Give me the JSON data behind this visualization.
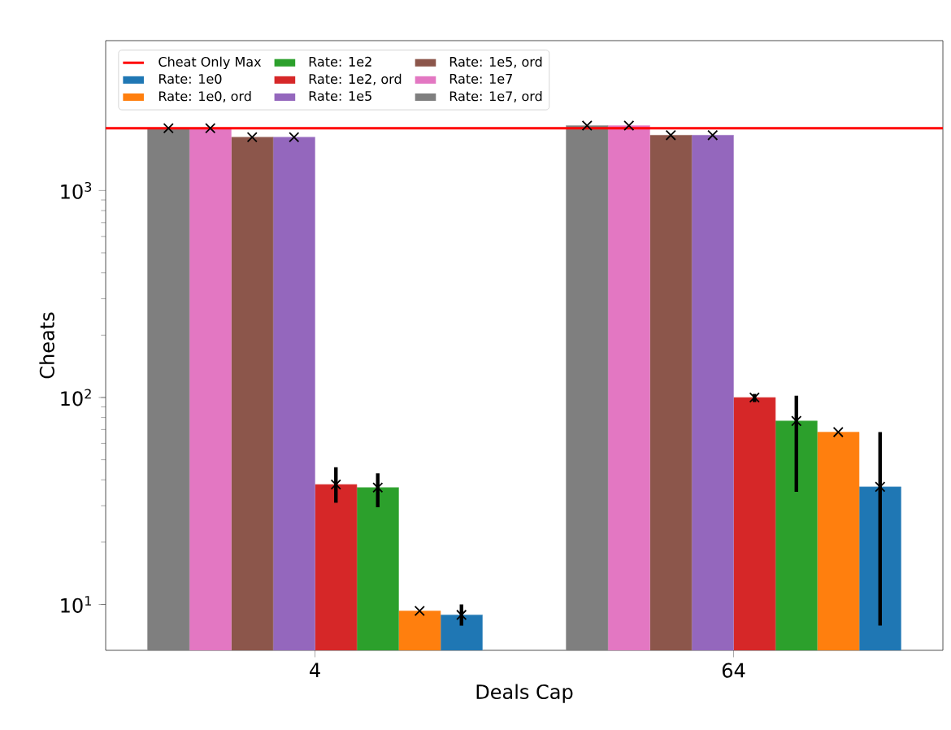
{
  "chart_data": {
    "type": "bar",
    "xlabel": "Deals Cap",
    "ylabel": "Cheats",
    "categories": [
      "4",
      "64"
    ],
    "series": [
      {
        "name": "Rate: 1e0",
        "color": "#1f77b4",
        "values": [
          8.9,
          37
        ],
        "errors": [
          [
            7.9,
            10
          ],
          [
            7.9,
            68
          ]
        ]
      },
      {
        "name": "Rate: 1e0, ord",
        "color": "#ff7f0e",
        "values": [
          9.3,
          68
        ],
        "errors": [
          null,
          null
        ]
      },
      {
        "name": "Rate: 1e2",
        "color": "#2ca02c",
        "values": [
          36.7,
          77
        ],
        "errors": [
          [
            29.5,
            43
          ],
          [
            35,
            102
          ]
        ]
      },
      {
        "name": "Rate: 1e2, ord",
        "color": "#d62728",
        "values": [
          38,
          100
        ],
        "errors": [
          [
            31,
            46
          ],
          [
            95,
            104
          ]
        ]
      },
      {
        "name": "Rate: 1e5",
        "color": "#9467bd",
        "values": [
          1810,
          1850
        ],
        "errors": [
          null,
          null
        ]
      },
      {
        "name": "Rate: 1e5, ord",
        "color": "#8c564b",
        "values": [
          1810,
          1850
        ],
        "errors": [
          null,
          null
        ]
      },
      {
        "name": "Rate: 1e7",
        "color": "#e377c2",
        "values": [
          2000,
          2060
        ],
        "errors": [
          null,
          null
        ]
      },
      {
        "name": "Rate: 1e7, ord",
        "color": "#7f7f7f",
        "values": [
          2000,
          2060
        ],
        "errors": [
          null,
          null
        ]
      },
      {
        "type": "scatter",
        "color": "#000000",
        "x": [
          "4",
          "4",
          "4",
          "4",
          "4",
          "4",
          "4",
          "4",
          "64",
          "64",
          "64",
          "64",
          "64",
          "64",
          "64",
          "64"
        ],
        "values": [
          2000,
          2000,
          1810,
          1810,
          38,
          36.7,
          9.3,
          8.9,
          2060,
          2060,
          1850,
          1850,
          100,
          77,
          68,
          37
        ]
      }
    ],
    "ref_lines": [
      {
        "axis": "y",
        "value": 2000,
        "label": "Cheat Only Max",
        "color": "#ff0000"
      }
    ],
    "log": "y",
    "ylim": [
      6,
      5300
    ],
    "yticks": [
      {
        "value": 10,
        "label": "10$^{1}$"
      },
      {
        "value": 100,
        "label": "10$^{2}$"
      },
      {
        "value": 1000,
        "label": "10$^{3}$"
      }
    ],
    "marker": "cross",
    "legend": "top left",
    "grid": false
  }
}
